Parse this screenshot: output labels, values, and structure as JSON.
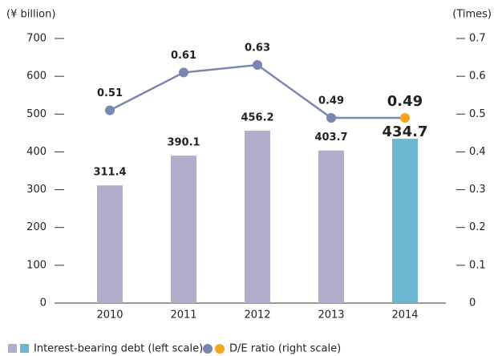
{
  "chart_data": {
    "type": "bar_line",
    "y_label": "(¥ billion)",
    "y2_label": "(Times)",
    "categories": [
      "2010",
      "2011",
      "2012",
      "2013",
      "2014"
    ],
    "series": [
      {
        "name": "Interest-bearing debt (left scale)",
        "type": "bar",
        "colors": [
          "#b2adcb",
          "#b2adcb",
          "#b2adcb",
          "#b2adcb",
          "#6cb6d2"
        ],
        "values": [
          311.4,
          390.1,
          456.2,
          403.7,
          434.7
        ]
      },
      {
        "name": "D/E ratio (right scale)",
        "type": "line",
        "axis": "y2",
        "color": "#7a85b0",
        "point_colors": [
          "#7a85b0",
          "#7a85b0",
          "#7a85b0",
          "#7a85b0",
          "#f5a51f"
        ],
        "values": [
          0.51,
          0.61,
          0.63,
          0.49,
          0.49
        ]
      }
    ],
    "ylim": [
      0,
      700
    ],
    "yticks": [
      0,
      100,
      200,
      300,
      400,
      500,
      600,
      700
    ],
    "y2lim": [
      0,
      0.7
    ],
    "y2ticks": [
      0,
      0.1,
      0.2,
      0.3,
      0.4,
      0.5,
      0.6,
      0.7
    ]
  }
}
